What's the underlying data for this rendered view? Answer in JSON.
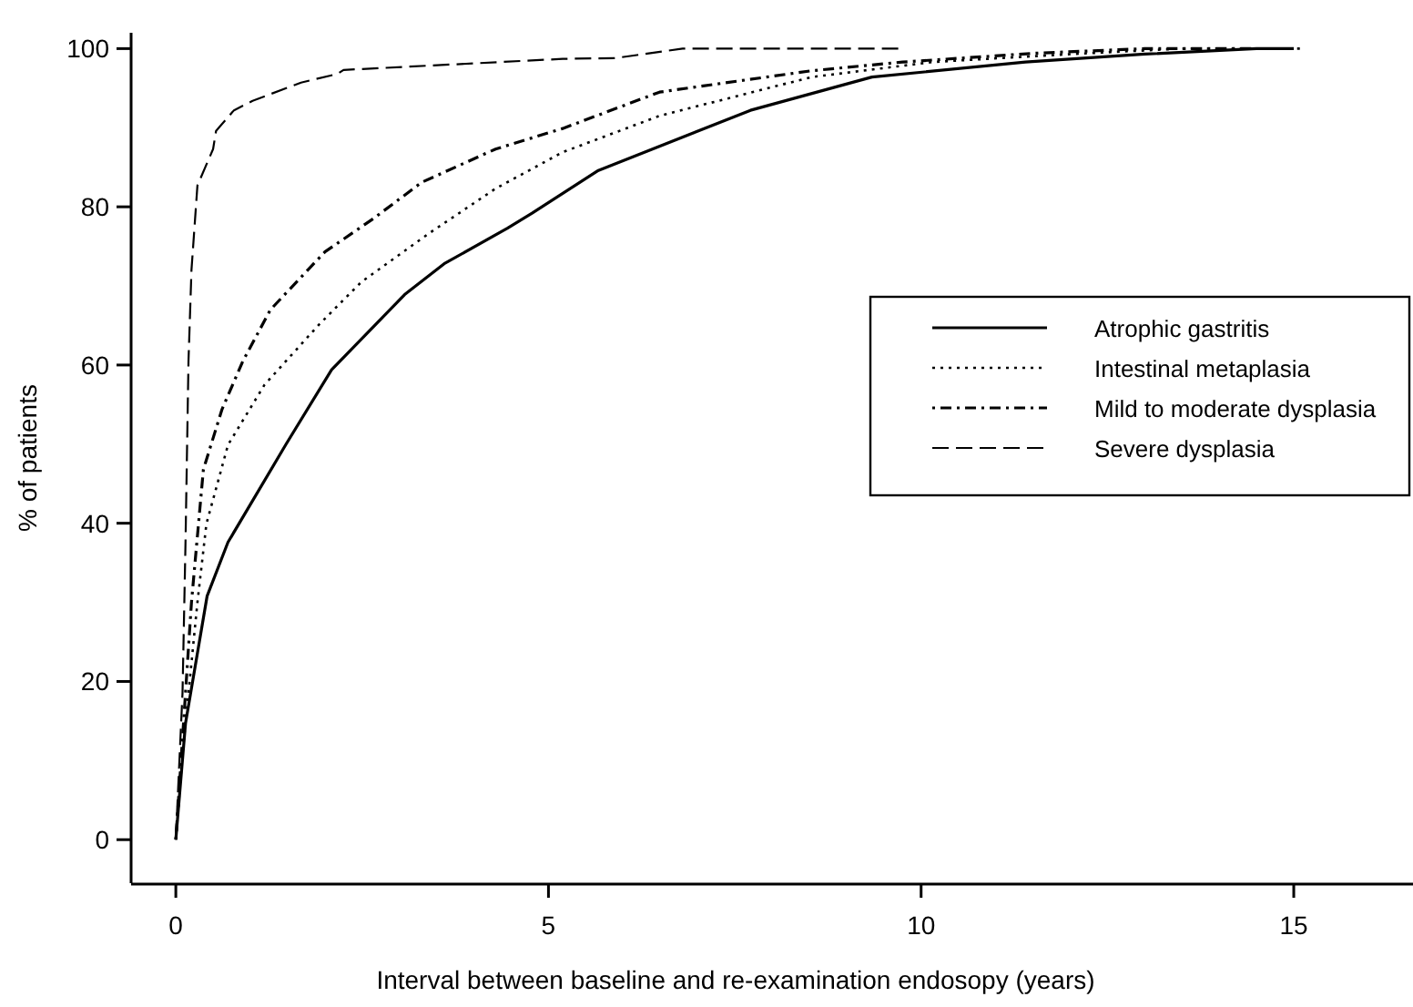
{
  "chart_data": {
    "type": "line",
    "xlabel": "Interval between baseline and re-examination endosopy (years)",
    "ylabel": "% of patients",
    "xlim": [
      -0.6,
      16.6
    ],
    "ylim": [
      -5.5,
      102
    ],
    "xticks": [
      0,
      5,
      10,
      15
    ],
    "yticks": [
      0,
      20,
      40,
      60,
      80,
      100
    ],
    "grid": false,
    "legend": "right",
    "series": [
      {
        "name": "Atrophic gastritis",
        "color": "#000000",
        "line_style": "solid",
        "x": [
          0,
          0.13,
          0.42,
          0.7,
          1.48,
          2.09,
          3.07,
          3.6,
          4.45,
          4.78,
          5.67,
          7.71,
          9.34,
          11.4,
          13,
          14.5,
          15
        ],
        "values": [
          0,
          14.7,
          30.8,
          37.6,
          50,
          59.4,
          68.9,
          72.8,
          77.3,
          79.2,
          84.6,
          92.2,
          96.4,
          98.3,
          99.3,
          100,
          100
        ]
      },
      {
        "name": "Intestinal metaplasia",
        "color": "#000000",
        "line_style": "dotted",
        "x": [
          0,
          0.09,
          0.29,
          0.41,
          0.7,
          1.19,
          1.92,
          2.49,
          3.39,
          4.29,
          5.19,
          6.49,
          8.53,
          10.15,
          12,
          13.5,
          15.1
        ],
        "values": [
          0,
          10.9,
          30,
          39.9,
          49.9,
          57.5,
          65.1,
          70.5,
          76.6,
          82.3,
          86.9,
          91.5,
          96.4,
          98.3,
          99.3,
          100,
          100
        ]
      },
      {
        "name": "Mild to moderate dysplasia",
        "color": "#000000",
        "line_style": "dashdot",
        "x": [
          0,
          0.05,
          0.21,
          0.37,
          0.62,
          0.9,
          1.27,
          2,
          2.65,
          3.3,
          4.29,
          5.19,
          6.49,
          8.53,
          9.75,
          11.5,
          13,
          14.5
        ],
        "values": [
          0,
          7.1,
          30,
          46.8,
          54.4,
          60.5,
          67,
          74.3,
          78.5,
          83.1,
          87.3,
          89.9,
          94.5,
          97.2,
          98.3,
          99.4,
          100,
          100
        ]
      },
      {
        "name": "Severe dysplasia",
        "color": "#000000",
        "line_style": "dashed",
        "x": [
          0,
          0.09,
          0.13,
          0.17,
          0.21,
          0.29,
          0.5,
          0.54,
          0.78,
          1.03,
          1.68,
          2.17,
          2.25,
          5.19,
          5.9,
          6.8,
          9.7
        ],
        "values": [
          0,
          18.6,
          37.6,
          60.5,
          72,
          82.7,
          87.3,
          89.6,
          92.2,
          93.4,
          95.7,
          96.8,
          97.3,
          98.7,
          98.8,
          100,
          100
        ]
      }
    ]
  }
}
